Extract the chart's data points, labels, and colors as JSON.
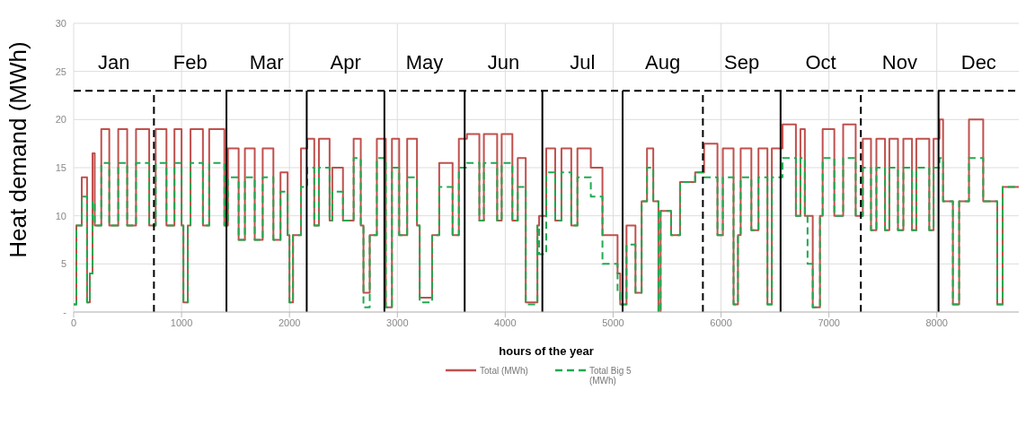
{
  "chart_data": {
    "type": "step",
    "xlabel": "hours of the year",
    "ylabel": "Heat demand (MWh)",
    "x": [
      0,
      25,
      75,
      124,
      150,
      175,
      195,
      256,
      330,
      413,
      496,
      578,
      700,
      760,
      860,
      934,
      1000,
      1017,
      1058,
      1083,
      1198,
      1256,
      1397,
      1430,
      1529,
      1587,
      1678,
      1752,
      1851,
      1917,
      1983,
      2000,
      2033,
      2107,
      2165,
      2230,
      2273,
      2372,
      2397,
      2496,
      2595,
      2661,
      2686,
      2744,
      2810,
      2893,
      2950,
      3017,
      3091,
      3182,
      3207,
      3322,
      3388,
      3512,
      3570,
      3645,
      3760,
      3802,
      3925,
      3967,
      4066,
      4116,
      4190,
      4298,
      4314,
      4380,
      4463,
      4521,
      4612,
      4669,
      4793,
      4901,
      5041,
      5066,
      5124,
      5207,
      5264,
      5314,
      5372,
      5420,
      5440,
      5537,
      5620,
      5760,
      5843,
      5967,
      6017,
      6116,
      6157,
      6182,
      6281,
      6347,
      6430,
      6471,
      6570,
      6694,
      6736,
      6777,
      6802,
      6850,
      6917,
      6942,
      7050,
      7132,
      7248,
      7314,
      7390,
      7440,
      7520,
      7560,
      7640,
      7690,
      7770,
      7810,
      7930,
      7970,
      8025,
      8058,
      8149,
      8207,
      8298,
      8430,
      8560,
      8610,
      8760
    ],
    "series": [
      {
        "name": "Total (MWh)",
        "color": "#c0504d",
        "line_style": "solid",
        "values": [
          0.8,
          9,
          14,
          1,
          4,
          16.5,
          9,
          19,
          9,
          19,
          9,
          19,
          9,
          19,
          9,
          19,
          9,
          1,
          9,
          19,
          9,
          19,
          9,
          17,
          7.5,
          17,
          7.5,
          17,
          7.5,
          14.5,
          8,
          1,
          8,
          17,
          18,
          9,
          18,
          9.5,
          15,
          9.5,
          18,
          9,
          2,
          8,
          18,
          0.5,
          18,
          8,
          18,
          9,
          1.5,
          8,
          15.5,
          8,
          18,
          18.5,
          9.5,
          18.5,
          9.5,
          18.5,
          9.5,
          16,
          1,
          9,
          10,
          17,
          9.5,
          17,
          9,
          17,
          15,
          8,
          4,
          0.8,
          9,
          2,
          11.5,
          17,
          11.5,
          0,
          10.5,
          8,
          13.5,
          14.5,
          17.5,
          8,
          17,
          0.8,
          8,
          17,
          8.5,
          17,
          0.8,
          17,
          19.5,
          10,
          19,
          10,
          10,
          0.5,
          10,
          19,
          10,
          19.5,
          10,
          18,
          8.5,
          18,
          8.5,
          18,
          8.5,
          18,
          8.5,
          18,
          8.5,
          18,
          20,
          11.5,
          0.8,
          11.5,
          20,
          11.5,
          0.8,
          13,
          13
        ]
      },
      {
        "name": "Total Big 5 (MWh)",
        "color": "#1faa4f",
        "line_style": "dashed",
        "values": [
          0.8,
          9,
          12,
          1,
          4,
          11.5,
          9,
          15.5,
          9,
          15.5,
          9,
          15.5,
          9,
          15.5,
          9,
          15.5,
          9,
          1,
          9,
          15.5,
          9,
          15.5,
          9,
          14,
          7.5,
          14,
          7.5,
          14,
          7.5,
          12.5,
          8,
          1,
          8,
          13,
          15,
          9,
          15,
          9.5,
          12.5,
          9.5,
          16,
          9,
          0.5,
          8,
          16,
          0.5,
          15,
          8,
          14,
          9,
          1,
          8,
          13,
          8,
          15,
          15.5,
          9.5,
          15.5,
          9.5,
          15.5,
          9.5,
          13,
          0.8,
          9,
          6,
          14.5,
          9.5,
          14.5,
          9,
          14,
          12,
          5,
          2,
          0.8,
          7,
          2,
          11.5,
          15,
          11.5,
          0,
          10.5,
          8,
          13.5,
          14.5,
          14,
          8,
          14,
          0.8,
          8,
          14,
          8.5,
          14,
          0.8,
          14,
          16,
          10,
          16,
          10,
          5,
          0.5,
          10,
          16,
          10,
          16,
          10,
          15,
          8.5,
          15,
          8.5,
          15,
          8.5,
          15,
          8.5,
          15,
          8.5,
          15,
          16,
          11.5,
          0.8,
          11.5,
          16,
          11.5,
          0.8,
          13,
          13
        ]
      }
    ],
    "xlim": [
      0,
      8760
    ],
    "xticks": [
      0,
      1000,
      2000,
      3000,
      4000,
      5000,
      6000,
      7000,
      8000
    ],
    "ylim": [
      0,
      30
    ],
    "yticks": [
      {
        "value": 0,
        "label": "-"
      },
      5,
      10,
      15,
      20,
      25,
      30
    ],
    "grid": true,
    "legend": "bottom",
    "ref_lines": [
      {
        "axis": "y",
        "value": 23,
        "line_style": "dashed",
        "color": "#000000"
      },
      {
        "axis": "x",
        "value": 744,
        "line_style": "dashed",
        "color": "#000000"
      },
      {
        "axis": "x",
        "value": 1416,
        "line_style": "solid",
        "color": "#000000"
      },
      {
        "axis": "x",
        "value": 2160,
        "line_style": "solid",
        "color": "#000000"
      },
      {
        "axis": "x",
        "value": 2880,
        "line_style": "solid",
        "color": "#000000"
      },
      {
        "axis": "x",
        "value": 3624,
        "line_style": "solid",
        "color": "#000000"
      },
      {
        "axis": "x",
        "value": 4344,
        "line_style": "solid",
        "color": "#000000"
      },
      {
        "axis": "x",
        "value": 5088,
        "line_style": "solid",
        "color": "#000000"
      },
      {
        "axis": "x",
        "value": 5832,
        "line_style": "dashed",
        "color": "#000000"
      },
      {
        "axis": "x",
        "value": 6552,
        "line_style": "solid",
        "color": "#000000"
      },
      {
        "axis": "x",
        "value": 7296,
        "line_style": "dashed",
        "color": "#000000"
      },
      {
        "axis": "x",
        "value": 8016,
        "line_style": "solid",
        "color": "#000000"
      }
    ],
    "annotations": [
      "Jan",
      "Feb",
      "Mar",
      "Apr",
      "May",
      "Jun",
      "Jul",
      "Aug",
      "Sep",
      "Oct",
      "Nov",
      "Dec"
    ]
  }
}
